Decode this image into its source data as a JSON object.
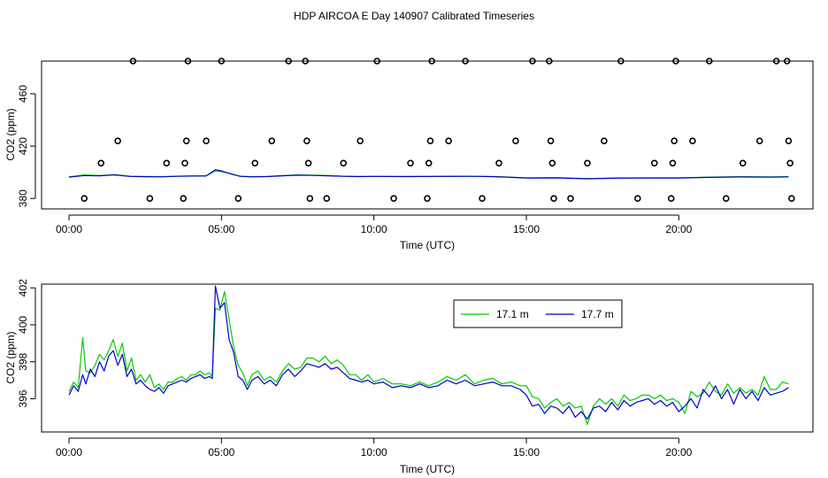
{
  "figure_title": "HDP AIRCOA E  Day 140907  Calibrated Timeseries",
  "chart_data": [
    {
      "type": "scatter",
      "title": "",
      "xlabel": "Time (UTC)",
      "ylabel": "CO2 (ppm)",
      "xlim": [
        -0.9,
        24.4
      ],
      "ylim": [
        372,
        485
      ],
      "x_ticks": [
        0,
        5,
        10,
        15,
        20
      ],
      "x_tick_labels": [
        "00:00",
        "05:00",
        "10:00",
        "15:00",
        "20:00"
      ],
      "y_ticks": [
        380,
        420,
        460
      ],
      "y_tick_labels": [
        "380",
        "420",
        "460"
      ],
      "grid": false,
      "points": {
        "marker": "open-circle",
        "color": "#000000",
        "x": [
          0.5,
          1.05,
          1.6,
          2.1,
          2.65,
          3.2,
          3.75,
          3.8,
          3.85,
          3.9,
          4.5,
          5.0,
          5.55,
          6.1,
          6.65,
          7.2,
          7.75,
          7.8,
          7.85,
          7.9,
          8.45,
          9.0,
          9.55,
          10.1,
          10.65,
          11.2,
          11.75,
          11.8,
          11.85,
          11.9,
          12.45,
          13.0,
          13.55,
          14.1,
          14.65,
          15.2,
          15.75,
          15.8,
          15.85,
          15.9,
          16.45,
          17.0,
          17.55,
          18.1,
          18.65,
          19.2,
          19.75,
          19.8,
          19.85,
          19.9,
          20.45,
          21.0,
          21.55,
          22.1,
          22.65,
          23.2,
          23.55,
          23.6,
          23.65,
          23.7
        ],
        "y": [
          380,
          407,
          424,
          485,
          380,
          407,
          380,
          407,
          424,
          485,
          424,
          485,
          380,
          407,
          424,
          485,
          485,
          424,
          407,
          380,
          380,
          407,
          424,
          485,
          380,
          407,
          380,
          407,
          424,
          485,
          424,
          485,
          380,
          407,
          424,
          485,
          485,
          424,
          407,
          380,
          380,
          407,
          424,
          485,
          380,
          407,
          380,
          407,
          424,
          485,
          424,
          485,
          380,
          407,
          424,
          485,
          485,
          424,
          407,
          380
        ]
      },
      "series": [
        {
          "name": "17.1 m",
          "color": "#00cc00",
          "x": [
            0,
            0.5,
            1,
            1.5,
            2,
            2.5,
            3,
            3.5,
            4,
            4.5,
            4.8,
            5,
            5.3,
            5.6,
            6,
            6.5,
            7,
            7.5,
            8,
            8.5,
            9,
            9.5,
            10,
            11,
            12,
            13,
            13.5,
            14,
            15,
            16,
            17,
            18,
            19,
            20,
            21,
            22,
            23,
            23.6
          ],
          "y": [
            396.5,
            398,
            397.5,
            398.2,
            397,
            396.8,
            396.6,
            397,
            397.2,
            397.3,
            401,
            400.5,
            399,
            397,
            396.6,
            396.8,
            397.5,
            398,
            397.8,
            397.5,
            397,
            396.8,
            396.9,
            396.8,
            396.9,
            397,
            396.9,
            396.7,
            395.8,
            395.9,
            395.2,
            395.7,
            395.8,
            395.8,
            396.3,
            396.6,
            396.5,
            396.6
          ]
        },
        {
          "name": "17.7 m",
          "color": "#0000cc",
          "x": [
            0,
            0.5,
            1,
            1.5,
            2,
            2.5,
            3,
            3.5,
            4,
            4.5,
            4.8,
            5,
            5.3,
            5.6,
            6,
            6.5,
            7,
            7.5,
            8,
            8.5,
            9,
            9.5,
            10,
            11,
            12,
            13,
            13.5,
            14,
            15,
            16,
            17,
            18,
            19,
            20,
            21,
            22,
            23,
            23.6
          ],
          "y": [
            396.3,
            397.5,
            397.3,
            398,
            396.8,
            396.6,
            396.5,
            396.9,
            397.1,
            397.2,
            402,
            401,
            398.8,
            397,
            396.5,
            396.7,
            397.3,
            397.8,
            397.6,
            397.3,
            396.9,
            396.7,
            396.8,
            396.7,
            396.8,
            396.9,
            396.8,
            396.6,
            395.6,
            395.7,
            395,
            395.5,
            395.6,
            395.6,
            396.1,
            396.4,
            396.3,
            396.5
          ]
        }
      ]
    },
    {
      "type": "line",
      "title": "",
      "xlabel": "Time (UTC)",
      "ylabel": "CO2 (ppm)",
      "xlim": [
        -0.9,
        24.4
      ],
      "ylim": [
        394.2,
        402.2
      ],
      "x_ticks": [
        0,
        5,
        10,
        15,
        20
      ],
      "x_tick_labels": [
        "00:00",
        "05:00",
        "10:00",
        "15:00",
        "20:00"
      ],
      "y_ticks": [
        396,
        398,
        400,
        402
      ],
      "y_tick_labels": [
        "396",
        "398",
        "400",
        "402"
      ],
      "grid": false,
      "legend": "top-right",
      "series": [
        {
          "name": "17.1 m",
          "color": "#00cc00",
          "x": [
            0,
            0.15,
            0.3,
            0.45,
            0.55,
            0.7,
            0.85,
            1.0,
            1.15,
            1.3,
            1.45,
            1.6,
            1.75,
            1.9,
            2.05,
            2.2,
            2.35,
            2.5,
            2.65,
            2.8,
            2.95,
            3.1,
            3.25,
            3.4,
            3.55,
            3.7,
            3.85,
            4.0,
            4.15,
            4.3,
            4.45,
            4.6,
            4.7,
            4.8,
            4.95,
            5.1,
            5.25,
            5.4,
            5.55,
            5.7,
            5.85,
            6.0,
            6.2,
            6.4,
            6.6,
            6.8,
            7.0,
            7.2,
            7.4,
            7.6,
            7.8,
            8.0,
            8.2,
            8.4,
            8.6,
            8.8,
            9.0,
            9.2,
            9.4,
            9.6,
            9.8,
            10.0,
            10.3,
            10.6,
            10.9,
            11.2,
            11.5,
            11.8,
            12.1,
            12.4,
            12.7,
            13.0,
            13.3,
            13.6,
            13.9,
            14.2,
            14.5,
            14.8,
            15.0,
            15.2,
            15.4,
            15.6,
            15.8,
            16.0,
            16.2,
            16.4,
            16.6,
            16.8,
            17.0,
            17.2,
            17.4,
            17.6,
            17.8,
            18.0,
            18.2,
            18.4,
            18.6,
            18.8,
            19.0,
            19.2,
            19.4,
            19.6,
            19.8,
            20.0,
            20.2,
            20.4,
            20.6,
            20.8,
            21.0,
            21.2,
            21.4,
            21.6,
            21.8,
            22.0,
            22.2,
            22.4,
            22.6,
            22.8,
            23.0,
            23.2,
            23.4,
            23.6
          ],
          "y": [
            396.4,
            396.9,
            396.6,
            399.3,
            397.5,
            397.4,
            397.8,
            398.4,
            398.1,
            398.6,
            399.2,
            398.3,
            399.0,
            397.5,
            398.2,
            397.0,
            397.3,
            396.9,
            397.3,
            396.6,
            396.8,
            396.5,
            396.9,
            396.9,
            397.1,
            397.2,
            397.0,
            397.3,
            397.3,
            397.5,
            397.3,
            397.4,
            397.2,
            400.9,
            400.8,
            401.8,
            400.3,
            398.8,
            397.8,
            397.4,
            396.7,
            397.3,
            397.5,
            397.0,
            397.2,
            396.9,
            397.5,
            397.9,
            397.6,
            397.7,
            398.2,
            398.2,
            398.0,
            398.3,
            397.9,
            398.1,
            397.8,
            397.3,
            397.3,
            397.0,
            397.3,
            396.9,
            397.1,
            396.8,
            396.8,
            396.7,
            396.9,
            396.7,
            396.9,
            397.2,
            397.0,
            397.3,
            396.8,
            397.0,
            397.1,
            396.8,
            396.9,
            396.7,
            396.7,
            396.1,
            396.0,
            395.5,
            395.8,
            396.0,
            395.6,
            395.8,
            395.5,
            395.6,
            394.6,
            395.6,
            396.0,
            395.7,
            396.0,
            395.6,
            396.2,
            395.9,
            396.0,
            396.2,
            396.2,
            396.0,
            396.2,
            395.9,
            396.0,
            395.8,
            395.2,
            396.4,
            396.1,
            396.3,
            396.9,
            396.4,
            396.2,
            396.8,
            396.3,
            396.6,
            396.3,
            396.5,
            396.2,
            397.2,
            396.5,
            396.5,
            396.9,
            396.8
          ]
        },
        {
          "name": "17.7 m",
          "color": "#0000cc",
          "x": [
            0,
            0.15,
            0.3,
            0.45,
            0.55,
            0.7,
            0.85,
            1.0,
            1.15,
            1.3,
            1.45,
            1.6,
            1.75,
            1.9,
            2.05,
            2.2,
            2.35,
            2.5,
            2.65,
            2.8,
            2.95,
            3.1,
            3.25,
            3.4,
            3.55,
            3.7,
            3.85,
            4.0,
            4.15,
            4.3,
            4.45,
            4.6,
            4.7,
            4.8,
            4.95,
            5.1,
            5.25,
            5.4,
            5.55,
            5.7,
            5.85,
            6.0,
            6.2,
            6.4,
            6.6,
            6.8,
            7.0,
            7.2,
            7.4,
            7.6,
            7.8,
            8.0,
            8.2,
            8.4,
            8.6,
            8.8,
            9.0,
            9.2,
            9.4,
            9.6,
            9.8,
            10.0,
            10.3,
            10.6,
            10.9,
            11.2,
            11.5,
            11.8,
            12.1,
            12.4,
            12.7,
            13.0,
            13.3,
            13.6,
            13.9,
            14.2,
            14.5,
            14.8,
            15.0,
            15.2,
            15.4,
            15.6,
            15.8,
            16.0,
            16.2,
            16.4,
            16.6,
            16.8,
            17.0,
            17.2,
            17.4,
            17.6,
            17.8,
            18.0,
            18.2,
            18.4,
            18.6,
            18.8,
            19.0,
            19.2,
            19.4,
            19.6,
            19.8,
            20.0,
            20.2,
            20.4,
            20.6,
            20.8,
            21.0,
            21.2,
            21.4,
            21.6,
            21.8,
            22.0,
            22.2,
            22.4,
            22.6,
            22.8,
            23.0,
            23.2,
            23.4,
            23.6
          ],
          "y": [
            396.2,
            396.7,
            396.4,
            397.3,
            396.8,
            397.6,
            397.2,
            398.0,
            397.5,
            398.3,
            398.6,
            397.8,
            398.4,
            397.2,
            397.6,
            396.8,
            397.0,
            396.7,
            396.5,
            396.4,
            396.6,
            396.3,
            396.7,
            396.8,
            396.9,
            397.0,
            396.9,
            397.1,
            397.2,
            397.3,
            397.1,
            397.2,
            397.1,
            402.1,
            400.9,
            401.2,
            399.2,
            398.5,
            397.2,
            397.0,
            396.5,
            397.0,
            397.2,
            396.8,
            397.0,
            396.7,
            397.3,
            397.6,
            397.2,
            397.5,
            397.9,
            397.8,
            397.7,
            397.9,
            397.6,
            397.7,
            397.4,
            397.1,
            397.0,
            396.9,
            397.0,
            396.8,
            396.9,
            396.6,
            396.7,
            396.6,
            396.8,
            396.6,
            396.7,
            397.0,
            396.8,
            397.0,
            396.7,
            396.8,
            396.9,
            396.7,
            396.7,
            396.5,
            396.2,
            395.6,
            395.7,
            395.2,
            395.6,
            395.5,
            395.2,
            395.6,
            395.0,
            395.3,
            394.9,
            395.5,
            395.6,
            395.3,
            395.8,
            395.4,
            395.9,
            395.6,
            395.8,
            395.9,
            396.0,
            395.7,
            395.9,
            395.6,
            395.8,
            395.3,
            395.6,
            396.0,
            395.5,
            396.5,
            396.1,
            396.7,
            396.0,
            396.5,
            395.7,
            396.5,
            396.0,
            396.4,
            395.9,
            396.6,
            396.2,
            396.3,
            396.4,
            396.6
          ]
        }
      ]
    }
  ]
}
